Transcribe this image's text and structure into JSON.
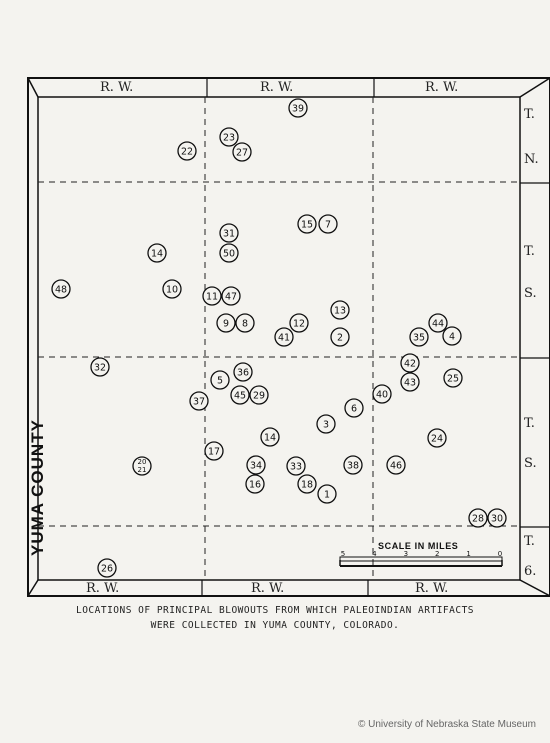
{
  "header_labels": [
    "R. W.",
    "R. W.",
    "R. W."
  ],
  "footer_labels": [
    "R. W.",
    "R. W.",
    "R. W."
  ],
  "right_labels": [
    "T.",
    "N.",
    "T.",
    "S.",
    "T.",
    "S.",
    "T.",
    "6."
  ],
  "county_label": "YUMA COUNTY",
  "scale": {
    "title": "SCALE IN MILES",
    "ticks": [
      "5",
      "4",
      "3",
      "2",
      "1",
      "0"
    ]
  },
  "caption": {
    "line1": "LOCATIONS OF PRINCIPAL BLOWOUTS FROM WHICH PALEOINDIAN ARTIFACTS",
    "line2": "WERE COLLECTED IN YUMA COUNTY, COLORADO."
  },
  "credit": "© University of Nebraska State Museum",
  "sites": [
    {
      "label": "39"
    },
    {
      "label": "23"
    },
    {
      "label": "22"
    },
    {
      "label": "27"
    },
    {
      "label": "15"
    },
    {
      "label": "7"
    },
    {
      "label": "31"
    },
    {
      "label": "14"
    },
    {
      "label": "50"
    },
    {
      "label": "48"
    },
    {
      "label": "10"
    },
    {
      "label": "11"
    },
    {
      "label": "47"
    },
    {
      "label": "13"
    },
    {
      "label": "44"
    },
    {
      "label": "9"
    },
    {
      "label": "8"
    },
    {
      "label": "12"
    },
    {
      "label": "41"
    },
    {
      "label": "2"
    },
    {
      "label": "35"
    },
    {
      "label": "4"
    },
    {
      "label": "32"
    },
    {
      "label": "42"
    },
    {
      "label": "36"
    },
    {
      "label": "5"
    },
    {
      "label": "43"
    },
    {
      "label": "25"
    },
    {
      "label": "45"
    },
    {
      "label": "29"
    },
    {
      "label": "40"
    },
    {
      "label": "37"
    },
    {
      "label": "6"
    },
    {
      "label": "3"
    },
    {
      "label": "14"
    },
    {
      "label": "24"
    },
    {
      "label": "17"
    },
    {
      "label": "20/21"
    },
    {
      "label": "34"
    },
    {
      "label": "33"
    },
    {
      "label": "38"
    },
    {
      "label": "46"
    },
    {
      "label": "16"
    },
    {
      "label": "18"
    },
    {
      "label": "1"
    },
    {
      "label": "28"
    },
    {
      "label": "30"
    },
    {
      "label": "26"
    }
  ]
}
